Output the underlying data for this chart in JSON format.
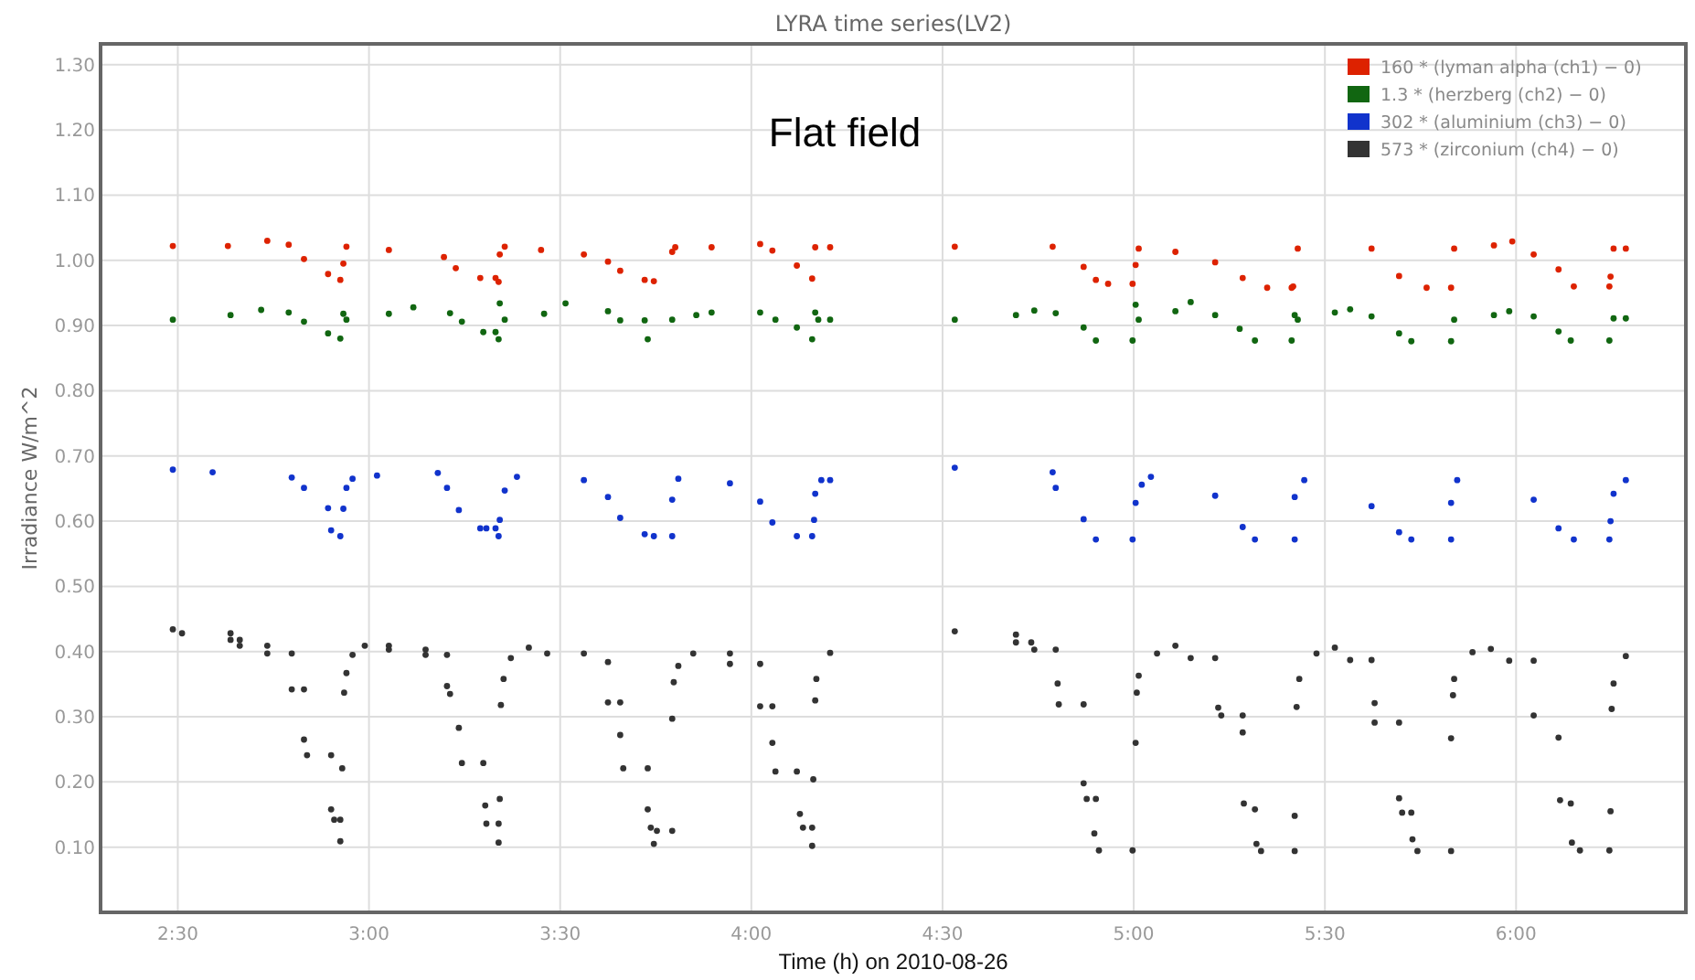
{
  "chart_data": {
    "type": "scatter",
    "title": "LYRA time series(LV2)",
    "xlabel": "Time (h) on 2010-08-26",
    "ylabel": "Irradiance W/m^2",
    "annotations": [
      "Flat field"
    ],
    "xlim": [
      2.298,
      6.444
    ],
    "ylim": [
      0,
      1.332
    ],
    "xticks": [
      {
        "value": 2.5,
        "label": "2:30"
      },
      {
        "value": 3,
        "label": "3:00"
      },
      {
        "value": 3.5,
        "label": "3:30"
      },
      {
        "value": 4,
        "label": "4:00"
      },
      {
        "value": 4.5,
        "label": "4:30"
      },
      {
        "value": 5,
        "label": "5:00"
      },
      {
        "value": 5.5,
        "label": "5:30"
      },
      {
        "value": 6,
        "label": "6:00"
      }
    ],
    "yticks": [
      {
        "value": 0.1,
        "label": "0.10"
      },
      {
        "value": 0.2,
        "label": "0.20"
      },
      {
        "value": 0.3,
        "label": "0.30"
      },
      {
        "value": 0.4,
        "label": "0.40"
      },
      {
        "value": 0.5,
        "label": "0.50"
      },
      {
        "value": 0.6,
        "label": "0.60"
      },
      {
        "value": 0.7,
        "label": "0.70"
      },
      {
        "value": 0.8,
        "label": "0.80"
      },
      {
        "value": 0.9,
        "label": "0.90"
      },
      {
        "value": 1.0,
        "label": "1.00"
      },
      {
        "value": 1.1,
        "label": "1.10"
      },
      {
        "value": 1.2,
        "label": "1.20"
      },
      {
        "value": 1.3,
        "label": "1.30"
      }
    ],
    "grid": true,
    "legend": "top right",
    "marker": "circle",
    "series": [
      {
        "name": "160 * (lyman alpha (ch1) − 0)",
        "color": "#dd2200",
        "x": [
          2.487,
          2.631,
          2.734,
          2.79,
          2.83,
          2.893,
          2.925,
          2.933,
          2.941,
          3.052,
          3.196,
          3.227,
          3.291,
          3.331,
          3.339,
          3.342,
          3.355,
          3.45,
          3.562,
          3.625,
          3.657,
          3.721,
          3.745,
          3.793,
          3.801,
          3.896,
          4.023,
          4.055,
          4.119,
          4.159,
          4.167,
          4.206,
          4.532,
          4.788,
          4.869,
          4.901,
          4.933,
          4.997,
          5.005,
          5.013,
          5.109,
          5.213,
          5.285,
          5.349,
          5.413,
          5.417,
          5.429,
          5.622,
          5.694,
          5.766,
          5.83,
          5.838,
          5.942,
          5.99,
          6.046,
          6.111,
          6.151,
          6.244,
          6.247,
          6.255,
          6.287
        ],
        "values": [
          1.022,
          1.022,
          1.03,
          1.024,
          1.002,
          0.979,
          0.97,
          0.995,
          1.021,
          1.016,
          1.005,
          0.988,
          0.973,
          0.973,
          0.967,
          1.009,
          1.021,
          1.016,
          1.009,
          0.998,
          0.984,
          0.97,
          0.968,
          1.013,
          1.02,
          1.02,
          1.025,
          1.015,
          0.992,
          0.972,
          1.02,
          1.02,
          1.021,
          1.021,
          0.99,
          0.97,
          0.964,
          0.964,
          0.993,
          1.018,
          1.013,
          0.997,
          0.973,
          0.958,
          0.958,
          0.96,
          1.018,
          1.018,
          0.976,
          0.958,
          0.958,
          1.018,
          1.023,
          1.029,
          1.009,
          0.986,
          0.96,
          0.96,
          0.975,
          1.018,
          1.018
        ]
      },
      {
        "name": "1.3 * (herzberg (ch2) − 0)",
        "color": "#116611",
        "x": [
          2.487,
          2.638,
          2.718,
          2.79,
          2.83,
          2.893,
          2.925,
          2.933,
          2.941,
          3.052,
          3.116,
          3.212,
          3.243,
          3.299,
          3.331,
          3.339,
          3.342,
          3.355,
          3.458,
          3.514,
          3.625,
          3.657,
          3.721,
          3.729,
          3.793,
          3.856,
          3.896,
          4.023,
          4.063,
          4.119,
          4.159,
          4.167,
          4.175,
          4.206,
          4.532,
          4.692,
          4.74,
          4.796,
          4.869,
          4.901,
          4.997,
          5.005,
          5.013,
          5.109,
          5.149,
          5.213,
          5.277,
          5.317,
          5.413,
          5.421,
          5.429,
          5.526,
          5.566,
          5.622,
          5.694,
          5.726,
          5.83,
          5.838,
          5.942,
          5.982,
          6.046,
          6.111,
          6.143,
          6.244,
          6.255,
          6.287
        ],
        "values": [
          0.909,
          0.916,
          0.924,
          0.92,
          0.906,
          0.888,
          0.88,
          0.918,
          0.909,
          0.918,
          0.928,
          0.919,
          0.906,
          0.89,
          0.89,
          0.879,
          0.934,
          0.909,
          0.918,
          0.934,
          0.922,
          0.908,
          0.908,
          0.879,
          0.909,
          0.916,
          0.92,
          0.92,
          0.909,
          0.897,
          0.879,
          0.92,
          0.909,
          0.909,
          0.909,
          0.916,
          0.923,
          0.919,
          0.897,
          0.877,
          0.877,
          0.932,
          0.909,
          0.922,
          0.936,
          0.916,
          0.895,
          0.877,
          0.877,
          0.916,
          0.909,
          0.92,
          0.925,
          0.914,
          0.888,
          0.876,
          0.876,
          0.909,
          0.916,
          0.922,
          0.914,
          0.891,
          0.877,
          0.877,
          0.911,
          0.911
        ]
      },
      {
        "name": "302 * (aluminium (ch3) − 0)",
        "color": "#1133cc",
        "x": [
          2.487,
          2.591,
          2.798,
          2.83,
          2.893,
          2.901,
          2.925,
          2.933,
          2.941,
          2.957,
          3.021,
          3.18,
          3.204,
          3.235,
          3.291,
          3.307,
          3.331,
          3.339,
          3.342,
          3.355,
          3.387,
          3.562,
          3.625,
          3.657,
          3.721,
          3.745,
          3.793,
          3.793,
          3.809,
          3.944,
          4.023,
          4.055,
          4.119,
          4.159,
          4.164,
          4.167,
          4.183,
          4.206,
          4.532,
          4.788,
          4.796,
          4.869,
          4.901,
          4.997,
          5.005,
          5.021,
          5.045,
          5.213,
          5.285,
          5.317,
          5.421,
          5.421,
          5.446,
          5.622,
          5.694,
          5.726,
          5.83,
          5.83,
          5.846,
          6.046,
          6.111,
          6.151,
          6.244,
          6.247,
          6.255,
          6.287
        ],
        "values": [
          0.679,
          0.675,
          0.667,
          0.651,
          0.62,
          0.586,
          0.577,
          0.619,
          0.651,
          0.665,
          0.67,
          0.674,
          0.651,
          0.617,
          0.589,
          0.589,
          0.589,
          0.577,
          0.602,
          0.647,
          0.668,
          0.663,
          0.637,
          0.605,
          0.58,
          0.577,
          0.577,
          0.633,
          0.665,
          0.658,
          0.63,
          0.598,
          0.577,
          0.577,
          0.602,
          0.642,
          0.663,
          0.663,
          0.682,
          0.675,
          0.651,
          0.603,
          0.572,
          0.572,
          0.628,
          0.656,
          0.668,
          0.639,
          0.591,
          0.572,
          0.572,
          0.637,
          0.663,
          0.623,
          0.583,
          0.572,
          0.572,
          0.628,
          0.663,
          0.633,
          0.589,
          0.572,
          0.572,
          0.6,
          0.642,
          0.663
        ]
      },
      {
        "name": "573 * (zirconium (ch4) − 0)",
        "color": "#333333",
        "x": [
          2.487,
          2.511,
          2.638,
          2.638,
          2.662,
          2.662,
          2.734,
          2.734,
          2.798,
          2.798,
          2.83,
          2.83,
          2.838,
          2.901,
          2.901,
          2.909,
          2.925,
          2.925,
          2.93,
          2.935,
          2.941,
          2.957,
          2.989,
          3.052,
          3.052,
          3.148,
          3.148,
          3.204,
          3.204,
          3.212,
          3.235,
          3.243,
          3.299,
          3.304,
          3.307,
          3.339,
          3.339,
          3.342,
          3.345,
          3.352,
          3.371,
          3.418,
          3.466,
          3.562,
          3.625,
          3.625,
          3.657,
          3.657,
          3.665,
          3.729,
          3.729,
          3.737,
          3.745,
          3.753,
          3.793,
          3.793,
          3.797,
          3.809,
          3.848,
          3.944,
          3.944,
          4.023,
          4.023,
          4.055,
          4.055,
          4.063,
          4.119,
          4.127,
          4.135,
          4.159,
          4.159,
          4.162,
          4.167,
          4.17,
          4.206,
          4.532,
          4.692,
          4.692,
          4.732,
          4.74,
          4.796,
          4.801,
          4.804,
          4.869,
          4.869,
          4.877,
          4.901,
          4.897,
          4.909,
          4.997,
          5.005,
          5.008,
          5.013,
          5.061,
          5.109,
          5.149,
          5.213,
          5.221,
          5.229,
          5.285,
          5.285,
          5.288,
          5.317,
          5.321,
          5.333,
          5.421,
          5.421,
          5.426,
          5.433,
          5.478,
          5.526,
          5.566,
          5.622,
          5.63,
          5.63,
          5.694,
          5.694,
          5.702,
          5.726,
          5.729,
          5.742,
          5.83,
          5.83,
          5.835,
          5.838,
          5.886,
          5.934,
          5.982,
          6.046,
          6.046,
          6.111,
          6.115,
          6.143,
          6.146,
          6.167,
          6.244,
          6.247,
          6.25,
          6.255,
          6.287
        ],
        "values": [
          0.434,
          0.428,
          0.428,
          0.418,
          0.418,
          0.409,
          0.409,
          0.397,
          0.397,
          0.342,
          0.342,
          0.265,
          0.241,
          0.241,
          0.158,
          0.142,
          0.142,
          0.109,
          0.221,
          0.337,
          0.367,
          0.395,
          0.409,
          0.409,
          0.403,
          0.403,
          0.395,
          0.395,
          0.347,
          0.335,
          0.283,
          0.229,
          0.229,
          0.164,
          0.136,
          0.136,
          0.107,
          0.174,
          0.318,
          0.358,
          0.39,
          0.406,
          0.397,
          0.397,
          0.384,
          0.322,
          0.322,
          0.272,
          0.221,
          0.221,
          0.158,
          0.13,
          0.105,
          0.125,
          0.125,
          0.297,
          0.353,
          0.378,
          0.397,
          0.397,
          0.381,
          0.381,
          0.316,
          0.316,
          0.26,
          0.216,
          0.216,
          0.151,
          0.13,
          0.13,
          0.102,
          0.204,
          0.325,
          0.358,
          0.398,
          0.431,
          0.426,
          0.414,
          0.414,
          0.403,
          0.403,
          0.351,
          0.319,
          0.319,
          0.198,
          0.174,
          0.174,
          0.121,
          0.095,
          0.095,
          0.26,
          0.337,
          0.363,
          0.397,
          0.409,
          0.39,
          0.39,
          0.314,
          0.302,
          0.302,
          0.276,
          0.167,
          0.158,
          0.105,
          0.094,
          0.094,
          0.148,
          0.315,
          0.358,
          0.397,
          0.406,
          0.387,
          0.387,
          0.321,
          0.291,
          0.291,
          0.175,
          0.153,
          0.153,
          0.112,
          0.094,
          0.094,
          0.267,
          0.333,
          0.358,
          0.399,
          0.404,
          0.386,
          0.386,
          0.302,
          0.268,
          0.172,
          0.167,
          0.107,
          0.095,
          0.095,
          0.155,
          0.312,
          0.351,
          0.393
        ]
      }
    ]
  }
}
